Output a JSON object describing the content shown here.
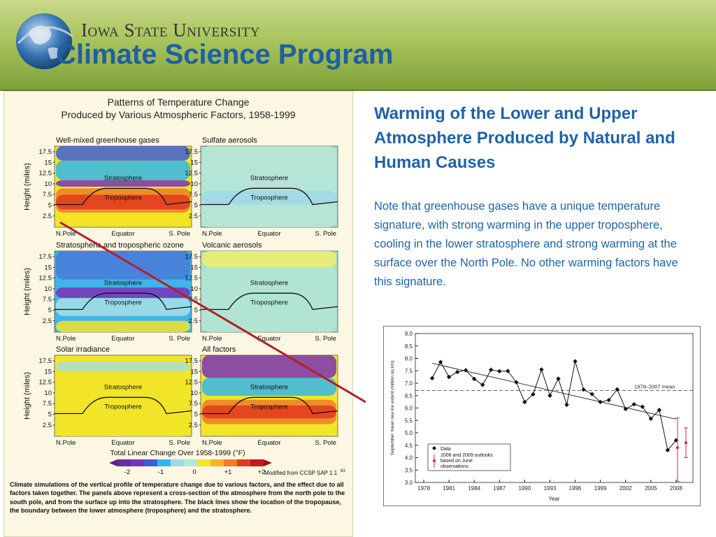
{
  "header": {
    "university": "Iowa State University",
    "program": "Climate Science Program"
  },
  "left_figure": {
    "title_line1": "Patterns of Temperature Change",
    "title_line2": "Produced by Various Atmospheric Factors, 1958-1999",
    "panels": [
      {
        "label": "Well-mixed greenhouse gases",
        "strat": "Stratosphere",
        "trop": "Troposphere"
      },
      {
        "label": "Sulfate aerosols",
        "strat": "Stratosphere",
        "trop": "Troposphere"
      },
      {
        "label": "Stratospheric and tropospheric ozone",
        "strat": "Stratosphere",
        "trop": "Troposphere"
      },
      {
        "label": "Volcanic aerosols",
        "strat": "Stratosphere",
        "trop": "Troposphere"
      },
      {
        "label": "Solar irradiance",
        "strat": "Stratosphere",
        "trop": "Troposphere"
      },
      {
        "label": "All factors",
        "strat": "Stratosphere",
        "trop": "Troposphere"
      }
    ],
    "ylabel": "Height (miles)",
    "yticks": [
      "17.5",
      "15",
      "12.5",
      "10",
      "7.5",
      "5",
      "2.5"
    ],
    "xlabels": [
      "N.Pole",
      "Equator",
      "S. Pole"
    ],
    "colorbar_title": "Total Linear Change Over 1958-1999 (°F)",
    "colorbar_ticks": [
      "-2",
      "-1",
      "0",
      "+1",
      "+2"
    ],
    "source": "Modified from CCSP SAP 1.1",
    "source_sup": "63",
    "caption": "Climate simulations of the vertical profile of temperature change due to various factors, and the effect due to all factors taken together. The panels above represent a cross-section of the atmosphere from the north pole to the south pole, and from the surface up into the stratosphere. The black lines show the location of the tropopause, the boundary between the lower atmosphere (troposphere) and the stratosphere."
  },
  "main": {
    "title": "Warming of the Lower and Upper Atmosphere Produced by Natural and Human Causes",
    "body": "Note that greenhouse gases have a unique temperature signature, with strong warming in the upper troposphere, cooling in the lower stratosphere and strong warming at the surface over the North Pole.  No other warming factors have this signature."
  },
  "chart_data": {
    "type": "line",
    "title": "",
    "xlabel": "Year",
    "ylabel": "September mean sea ice extent (million sq km)",
    "xlim": [
      1977,
      2010
    ],
    "ylim": [
      3.0,
      9.0
    ],
    "yticks": [
      "3.0",
      "3.5",
      "4.0",
      "4.5",
      "5.0",
      "5.5",
      "6.0",
      "6.5",
      "7.0",
      "7.5",
      "8.0",
      "8.5",
      "9.0"
    ],
    "xticks": [
      "1978",
      "1981",
      "1984",
      "1987",
      "1990",
      "1993",
      "1996",
      "1999",
      "2002",
      "2005",
      "2008"
    ],
    "mean_line": {
      "label": "1979–2007 mean",
      "value": 6.7
    },
    "series": [
      {
        "name": "Data",
        "x": [
          1979,
          1980,
          1981,
          1982,
          1983,
          1984,
          1985,
          1986,
          1987,
          1988,
          1989,
          1990,
          1991,
          1992,
          1993,
          1994,
          1995,
          1996,
          1997,
          1998,
          1999,
          2000,
          2001,
          2002,
          2003,
          2004,
          2005,
          2006,
          2007,
          2008
        ],
        "values": [
          7.2,
          7.85,
          7.25,
          7.45,
          7.52,
          7.17,
          6.93,
          7.54,
          7.48,
          7.49,
          7.04,
          6.24,
          6.55,
          7.55,
          6.5,
          7.18,
          6.13,
          7.88,
          6.74,
          6.56,
          6.24,
          6.32,
          6.75,
          5.96,
          6.15,
          6.05,
          5.57,
          5.92,
          4.3,
          4.7
        ]
      }
    ],
    "trend": {
      "x": [
        1979,
        2008
      ],
      "values": [
        7.8,
        5.55
      ]
    },
    "outlooks": [
      {
        "x": 2008,
        "value": 4.4,
        "low": 3.05,
        "high": 5.6
      },
      {
        "x": 2009,
        "value": 4.6,
        "low": 4.0,
        "high": 5.2
      }
    ],
    "legend": {
      "data_label": "Data",
      "outlook_label_1": "2008 and 2009 outlooks",
      "outlook_label_2": "based on June",
      "outlook_label_3": "observations"
    }
  }
}
